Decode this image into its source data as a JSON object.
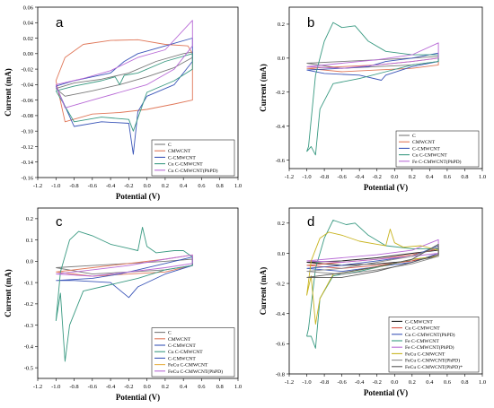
{
  "chart_data": [
    {
      "type": "line",
      "panel": "a",
      "xlabel": "Potential (V)",
      "ylabel": "Current (mA)",
      "xlim": [
        -1.2,
        1.0
      ],
      "ylim": [
        -0.16,
        0.06
      ],
      "xticks": [
        "-1.2",
        "-1.0",
        "-0.8",
        "-0.6",
        "-0.4",
        "-0.2",
        "0.0",
        "0.2",
        "0.4",
        "0.6",
        "0.8",
        "1.0"
      ],
      "yticks": [
        "0.06",
        "0.04",
        "0.02",
        "0.00",
        "-0.02",
        "-0.04",
        "-0.06",
        "-0.08",
        "-0.10",
        "-0.12",
        "-0.14",
        "-0.16"
      ],
      "legend_position": "bottom-right",
      "series": [
        {
          "name": "C",
          "color": "#7a7a7a",
          "x": [
            -1.0,
            -0.8,
            -0.5,
            -0.2,
            0.1,
            0.4,
            0.5,
            0.5,
            0.3,
            0.0,
            -0.3,
            -0.6,
            -0.9,
            -1.0
          ],
          "y": [
            -0.045,
            -0.038,
            -0.033,
            -0.025,
            -0.01,
            0.0,
            0.002,
            -0.005,
            -0.018,
            -0.03,
            -0.04,
            -0.048,
            -0.055,
            -0.045
          ]
        },
        {
          "name": "CMWCNT",
          "color": "#e0785a",
          "x": [
            -1.0,
            -0.9,
            -0.7,
            -0.4,
            -0.1,
            0.2,
            0.45,
            0.5,
            0.5,
            0.3,
            0.0,
            -0.3,
            -0.6,
            -0.9,
            -1.0
          ],
          "y": [
            -0.035,
            -0.005,
            0.012,
            0.017,
            0.018,
            0.012,
            0.01,
            0.0,
            -0.06,
            -0.065,
            -0.072,
            -0.076,
            -0.078,
            -0.088,
            -0.035
          ]
        },
        {
          "name": "C-CMWCNT",
          "color": "#3a55b8",
          "x": [
            -1.0,
            -0.8,
            -0.6,
            -0.4,
            -0.3,
            -0.25,
            -0.1,
            0.2,
            0.5,
            0.5,
            0.3,
            0.0,
            -0.1,
            -0.15,
            -0.2,
            -0.5,
            -0.8,
            -1.0
          ],
          "y": [
            -0.042,
            -0.035,
            -0.03,
            -0.025,
            -0.015,
            -0.01,
            0.0,
            0.01,
            0.02,
            -0.01,
            -0.04,
            -0.055,
            -0.075,
            -0.13,
            -0.09,
            -0.088,
            -0.094,
            -0.042
          ]
        },
        {
          "name": "Cu C-CMWCNT",
          "color": "#3a9a82",
          "x": [
            -1.0,
            -0.8,
            -0.5,
            -0.35,
            -0.3,
            -0.25,
            -0.1,
            0.2,
            0.5,
            0.5,
            0.3,
            0.0,
            -0.15,
            -0.2,
            -0.5,
            -0.8,
            -1.0
          ],
          "y": [
            -0.048,
            -0.042,
            -0.035,
            -0.03,
            -0.04,
            -0.028,
            -0.025,
            -0.01,
            0.0,
            -0.02,
            -0.035,
            -0.05,
            -0.1,
            -0.085,
            -0.082,
            -0.088,
            -0.048
          ]
        },
        {
          "name": "Cu C-CMWCNT(PhPD)",
          "color": "#b86ad6",
          "x": [
            -1.0,
            -0.7,
            -0.4,
            -0.1,
            0.2,
            0.5,
            0.5,
            0.3,
            0.0,
            -0.3,
            -0.6,
            -0.9,
            -1.0
          ],
          "y": [
            -0.04,
            -0.032,
            -0.022,
            -0.005,
            0.005,
            0.043,
            0.01,
            -0.02,
            -0.04,
            -0.05,
            -0.06,
            -0.07,
            -0.04
          ]
        }
      ]
    },
    {
      "type": "line",
      "panel": "b",
      "xlabel": "Potential (V)",
      "ylabel": "Current (mA)",
      "xlim": [
        -1.2,
        1.0
      ],
      "ylim": [
        -0.65,
        0.3
      ],
      "xticks": [
        "-1.2",
        "-1.0",
        "-0.8",
        "-0.6",
        "-0.4",
        "-0.2",
        "0.0",
        "0.2",
        "0.4",
        "0.6",
        "0.8",
        "1.0"
      ],
      "yticks": [
        "0.2",
        "0.0",
        "-0.2",
        "-0.4",
        "-0.6"
      ],
      "legend_position": "bottom-right",
      "series": [
        {
          "name": "C",
          "color": "#7a7a7a",
          "x": [
            -1.0,
            -0.6,
            -0.2,
            0.2,
            0.5,
            0.5,
            0.2,
            -0.2,
            -0.6,
            -1.0
          ],
          "y": [
            -0.03,
            -0.02,
            -0.01,
            0.0,
            0.01,
            -0.02,
            -0.04,
            -0.05,
            -0.06,
            -0.03
          ]
        },
        {
          "name": "CMWCNT",
          "color": "#e0785a",
          "x": [
            -1.0,
            -0.6,
            -0.2,
            0.2,
            0.5,
            0.5,
            0.2,
            -0.2,
            -0.6,
            -1.0
          ],
          "y": [
            -0.06,
            -0.05,
            -0.04,
            -0.02,
            0.0,
            -0.04,
            -0.06,
            -0.07,
            -0.08,
            -0.06
          ]
        },
        {
          "name": "C-CMWCNT",
          "color": "#3a55b8",
          "x": [
            -1.0,
            -0.6,
            -0.3,
            -0.1,
            0.2,
            0.5,
            0.5,
            0.2,
            -0.1,
            -0.15,
            -0.4,
            -0.8,
            -1.0
          ],
          "y": [
            -0.07,
            -0.06,
            -0.05,
            -0.02,
            0.0,
            0.03,
            -0.02,
            -0.05,
            -0.1,
            -0.13,
            -0.1,
            -0.09,
            -0.07
          ]
        },
        {
          "name": "Cu C-CMWCNT",
          "color": "#3a9a82",
          "x": [
            -1.0,
            -0.98,
            -0.9,
            -0.8,
            -0.7,
            -0.6,
            -0.45,
            -0.3,
            -0.1,
            0.2,
            0.5,
            0.5,
            0.2,
            -0.1,
            -0.4,
            -0.7,
            -0.85,
            -0.9,
            -0.95,
            -1.0
          ],
          "y": [
            -0.55,
            -0.52,
            -0.1,
            0.1,
            0.21,
            0.18,
            0.19,
            0.1,
            0.04,
            0.02,
            0.02,
            -0.02,
            -0.04,
            -0.08,
            -0.12,
            -0.15,
            -0.3,
            -0.57,
            -0.52,
            -0.55
          ]
        },
        {
          "name": "Fe C-CMWCNT(PhPD)",
          "color": "#b86ad6",
          "x": [
            -1.0,
            -0.6,
            -0.2,
            0.2,
            0.5,
            0.5,
            0.2,
            -0.2,
            -0.6,
            -1.0
          ],
          "y": [
            -0.05,
            -0.03,
            -0.01,
            0.02,
            0.09,
            0.0,
            -0.02,
            -0.04,
            -0.06,
            -0.05
          ]
        }
      ]
    },
    {
      "type": "line",
      "panel": "c",
      "xlabel": "Potential (V)",
      "ylabel": "Current (mA)",
      "xlim": [
        -1.2,
        1.0
      ],
      "ylim": [
        -0.55,
        0.25
      ],
      "xticks": [
        "-1.2",
        "-1.0",
        "-0.8",
        "-0.6",
        "-0.4",
        "-0.2",
        "0.0",
        "0.2",
        "0.4",
        "0.6",
        "0.8",
        "1.0"
      ],
      "yticks": [
        "0.2",
        "0.1",
        "0.0",
        "-0.1",
        "-0.2",
        "-0.3",
        "-0.4",
        "-0.5"
      ],
      "legend_position": "bottom-right",
      "series": [
        {
          "name": "C",
          "color": "#7a7a7a",
          "x": [
            -1.0,
            -0.6,
            -0.2,
            0.2,
            0.5,
            0.5,
            0.2,
            -0.2,
            -0.6,
            -1.0
          ],
          "y": [
            -0.03,
            -0.02,
            -0.01,
            0.0,
            0.01,
            -0.02,
            -0.04,
            -0.05,
            -0.06,
            -0.03
          ]
        },
        {
          "name": "CMWCNT",
          "color": "#e0785a",
          "x": [
            -1.0,
            -0.6,
            -0.2,
            0.2,
            0.5,
            0.5,
            0.2,
            -0.2,
            -0.6,
            -1.0
          ],
          "y": [
            -0.05,
            -0.03,
            -0.01,
            0.01,
            0.03,
            -0.02,
            -0.05,
            -0.06,
            -0.07,
            -0.05
          ]
        },
        {
          "name": "C-CMWCNT",
          "color": "#3a55b8",
          "x": [
            -1.0,
            -0.6,
            -0.3,
            -0.1,
            0.2,
            0.5,
            0.5,
            0.2,
            -0.1,
            -0.2,
            -0.4,
            -0.8,
            -1.0
          ],
          "y": [
            -0.09,
            -0.08,
            -0.06,
            -0.04,
            -0.01,
            0.02,
            -0.02,
            -0.06,
            -0.12,
            -0.17,
            -0.1,
            -0.09,
            -0.09
          ]
        },
        {
          "name": "Cu C-CMWCNT",
          "color": "#3a9a82",
          "x": [
            -1.0,
            -0.95,
            -0.85,
            -0.75,
            -0.6,
            -0.4,
            -0.2,
            -0.1,
            -0.05,
            0.0,
            0.1,
            0.3,
            0.4,
            0.5,
            0.5,
            0.2,
            -0.1,
            -0.4,
            -0.7,
            -0.85,
            -0.9,
            -0.95,
            -1.0
          ],
          "y": [
            -0.28,
            -0.05,
            0.1,
            0.14,
            0.12,
            0.08,
            0.06,
            0.05,
            0.16,
            0.07,
            0.04,
            0.05,
            0.05,
            0.02,
            -0.02,
            -0.04,
            -0.08,
            -0.11,
            -0.14,
            -0.3,
            -0.47,
            -0.15,
            -0.28
          ]
        },
        {
          "name": "C-CMWCNT",
          "color": "#3a55b8",
          "x": [],
          "y": []
        },
        {
          "name": "FeCu C-CMWCNT",
          "color": "#e8b24a",
          "x": [],
          "y": []
        },
        {
          "name": "FeCu C-CMWCNT(PhPD)",
          "color": "#b86ad6",
          "x": [
            -1.0,
            -0.6,
            -0.2,
            0.2,
            0.5,
            0.5,
            0.2,
            -0.2,
            -0.6,
            -1.0
          ],
          "y": [
            -0.06,
            -0.04,
            -0.02,
            0.01,
            0.03,
            -0.01,
            -0.03,
            -0.05,
            -0.07,
            -0.06
          ]
        }
      ]
    },
    {
      "type": "line",
      "panel": "d",
      "xlabel": "Potential (V)",
      "ylabel": "Current (mA)",
      "xlim": [
        -1.2,
        1.0
      ],
      "ylim": [
        -0.8,
        0.3
      ],
      "xticks": [
        "-1.2",
        "-1.0",
        "-0.8",
        "-0.6",
        "-0.4",
        "-0.2",
        "0.0",
        "0.2",
        "0.4",
        "0.6",
        "0.8",
        "1.0"
      ],
      "yticks": [
        "0.2",
        "0.0",
        "-0.2",
        "-0.4",
        "-0.6",
        "-0.8"
      ],
      "legend_position": "bottom-right",
      "series": [
        {
          "name": "C-CMWCNT",
          "color": "#222222",
          "x": [
            -1.0,
            -0.6,
            -0.2,
            0.2,
            0.5,
            0.5,
            0.2,
            -0.2,
            -0.6,
            -1.0
          ],
          "y": [
            -0.06,
            -0.05,
            -0.03,
            0.0,
            0.02,
            -0.02,
            -0.05,
            -0.07,
            -0.08,
            -0.06
          ]
        },
        {
          "name": "Cu C-CMWCNT",
          "color": "#d9574a",
          "x": [
            -1.0,
            -0.6,
            -0.2,
            0.2,
            0.5,
            0.5,
            0.2,
            -0.2,
            -0.6,
            -1.0
          ],
          "y": [
            -0.08,
            -0.06,
            -0.04,
            -0.01,
            0.03,
            -0.01,
            -0.05,
            -0.08,
            -0.1,
            -0.08
          ]
        },
        {
          "name": "Cu C-CMWCNT(PhPD)",
          "color": "#3a55b8",
          "x": [
            -1.0,
            -0.6,
            -0.2,
            0.2,
            0.5,
            0.5,
            0.2,
            -0.2,
            -0.6,
            -1.0
          ],
          "y": [
            -0.1,
            -0.08,
            -0.05,
            -0.02,
            0.05,
            0.0,
            -0.06,
            -0.09,
            -0.12,
            -0.1
          ]
        },
        {
          "name": "Fe C-CMWCNT",
          "color": "#3a9a82",
          "x": [
            -1.0,
            -0.98,
            -0.9,
            -0.8,
            -0.7,
            -0.55,
            -0.45,
            -0.3,
            -0.1,
            0.2,
            0.5,
            0.5,
            0.2,
            -0.1,
            -0.4,
            -0.7,
            -0.85,
            -0.9,
            -0.95,
            -1.0
          ],
          "y": [
            -0.55,
            -0.5,
            -0.1,
            0.1,
            0.22,
            0.19,
            0.2,
            0.12,
            0.05,
            0.03,
            0.03,
            -0.02,
            -0.04,
            -0.08,
            -0.12,
            -0.15,
            -0.3,
            -0.63,
            -0.55,
            -0.55
          ]
        },
        {
          "name": "Fe C-CMWCNT(PhPD)",
          "color": "#b86ad6",
          "x": [
            -1.0,
            -0.6,
            -0.2,
            0.2,
            0.5,
            0.5,
            0.2,
            -0.2,
            -0.6,
            -1.0
          ],
          "y": [
            -0.05,
            -0.03,
            -0.01,
            0.02,
            0.09,
            0.0,
            -0.02,
            -0.04,
            -0.06,
            -0.05
          ]
        },
        {
          "name": "FeCu C-CMWCNT",
          "color": "#c8b420",
          "x": [
            -1.0,
            -0.95,
            -0.85,
            -0.75,
            -0.6,
            -0.4,
            -0.2,
            -0.1,
            -0.05,
            0.0,
            0.1,
            0.3,
            0.5,
            0.5,
            0.2,
            -0.1,
            -0.4,
            -0.7,
            -0.85,
            -0.9,
            -0.95,
            -1.0
          ],
          "y": [
            -0.28,
            -0.05,
            0.1,
            0.14,
            0.12,
            0.08,
            0.06,
            0.05,
            0.16,
            0.07,
            0.04,
            0.05,
            0.02,
            -0.02,
            -0.04,
            -0.08,
            -0.11,
            -0.14,
            -0.3,
            -0.47,
            -0.15,
            -0.28
          ]
        },
        {
          "name": "FeCu C-CMWCNT(PhPD)",
          "color": "#8a8a8a",
          "x": [
            -1.0,
            -0.6,
            -0.2,
            0.2,
            0.5,
            0.5,
            0.2,
            -0.2,
            -0.6,
            -1.0
          ],
          "y": [
            -0.12,
            -0.1,
            -0.06,
            -0.02,
            0.04,
            -0.02,
            -0.07,
            -0.11,
            -0.14,
            -0.12
          ]
        },
        {
          "name": "FeCu C-CMWCNT(PhPD)*",
          "color": "#555555",
          "x": [
            -1.0,
            -0.6,
            -0.2,
            0.2,
            0.5,
            0.5,
            0.2,
            -0.2,
            -0.6,
            -1.0
          ],
          "y": [
            -0.16,
            -0.13,
            -0.09,
            -0.04,
            0.06,
            -0.01,
            -0.06,
            -0.12,
            -0.16,
            -0.16
          ]
        }
      ]
    }
  ]
}
